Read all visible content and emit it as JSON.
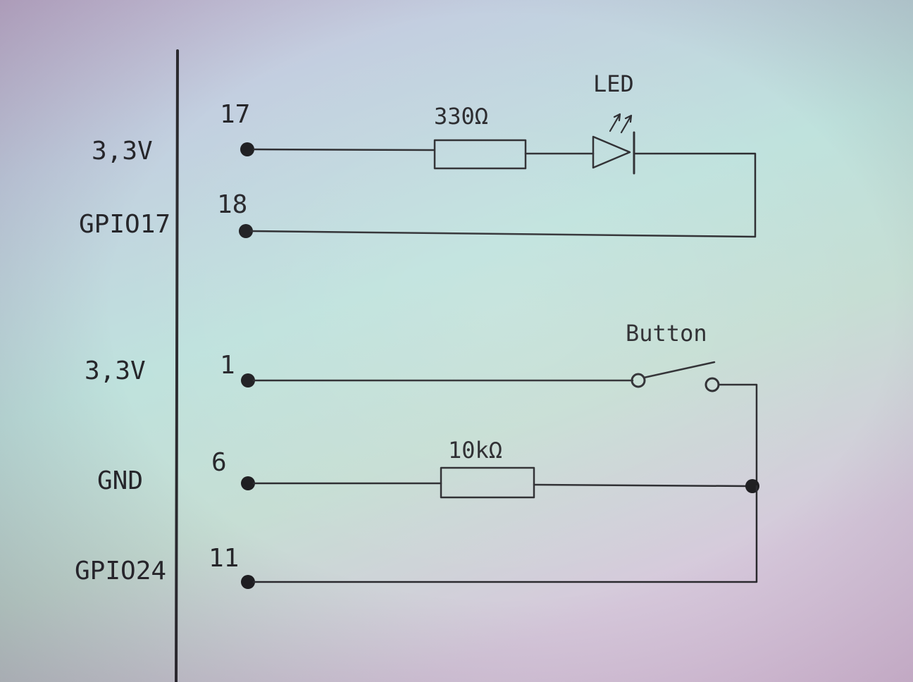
{
  "pins": [
    {
      "number": "17",
      "signal": "3,3V"
    },
    {
      "number": "18",
      "signal": "GPIO17"
    },
    {
      "number": "1",
      "signal": "3,3V"
    },
    {
      "number": "6",
      "signal": "GND"
    },
    {
      "number": "11",
      "signal": "GPIO24"
    }
  ],
  "components": {
    "led_resistor_value": "330Ω",
    "led_label": "LED",
    "button_label": "Button",
    "pulldown_resistor_value": "10kΩ"
  },
  "colors": {
    "ink": "#2a2a2e",
    "paper": "#c3dcd8"
  }
}
